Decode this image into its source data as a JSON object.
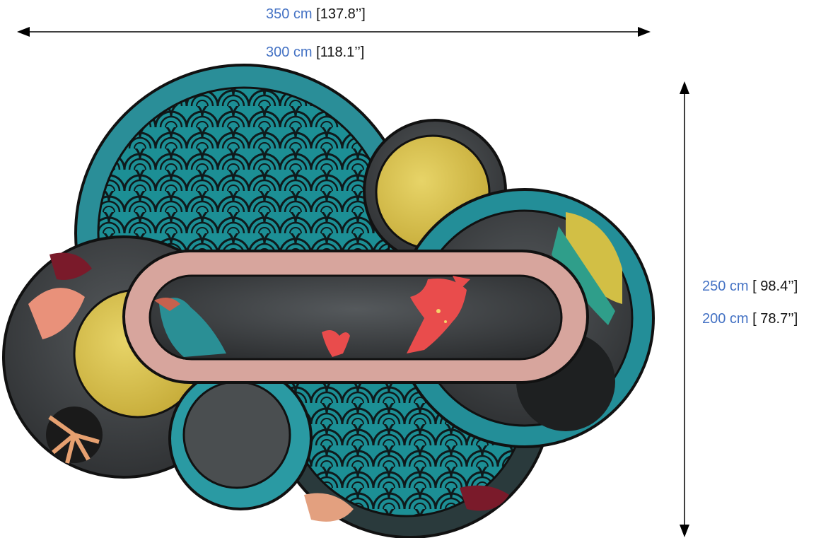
{
  "dimensions": {
    "width": [
      {
        "metric": "350 cm",
        "imperial": "[137.8’’]"
      },
      {
        "metric": "300 cm",
        "imperial": "[118.1’’]"
      }
    ],
    "height": [
      {
        "metric": "250 cm",
        "imperial": "[ 98.4’’]"
      },
      {
        "metric": "200 cm",
        "imperial": "[ 78.7’’]"
      }
    ]
  },
  "colors": {
    "metric_text": "#4472c4",
    "teal": "#1f8a93",
    "teal_light": "#3fa9b1",
    "charcoal": "#3a3c3e",
    "pink": "#d9a79f",
    "yellow": "#d8c24a",
    "coral": "#e05a5a"
  }
}
